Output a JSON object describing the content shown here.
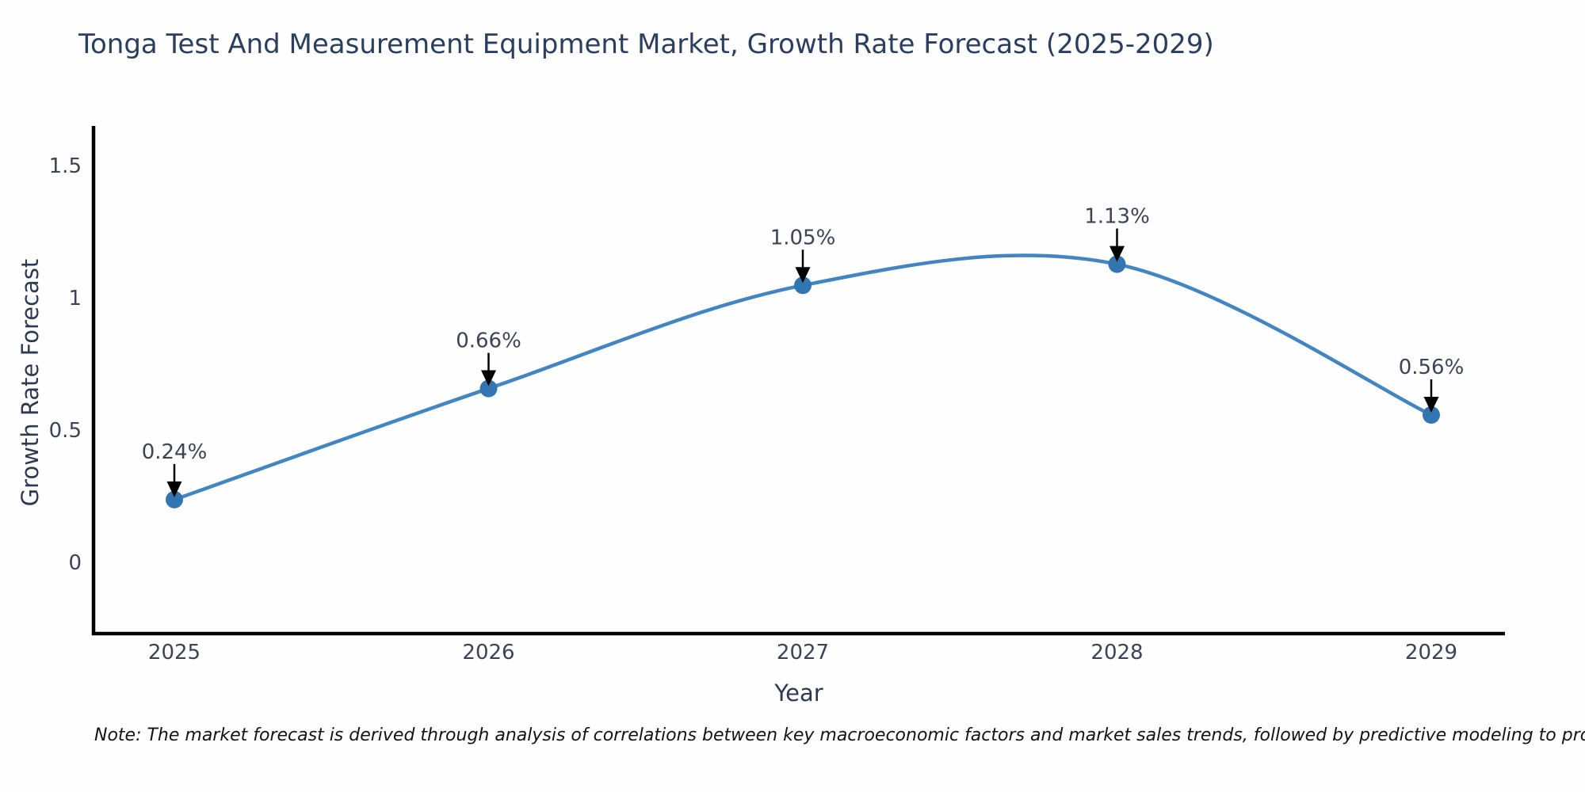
{
  "title": "Tonga Test And Measurement Equipment Market, Growth Rate Forecast (2025-2029)",
  "note": "Note: The market forecast is derived through analysis of correlations between key macroeconomic factors and market sales trends, followed by predictive modeling to project future sales",
  "chart_data": {
    "type": "line",
    "title": "Tonga Test And Measurement Equipment Market, Growth Rate Forecast (2025-2029)",
    "xlabel": "Year",
    "ylabel": "Growth Rate Forecast",
    "categories": [
      "2025",
      "2026",
      "2027",
      "2028",
      "2029"
    ],
    "series": [
      {
        "name": "Growth Rate Forecast",
        "values": [
          0.24,
          0.66,
          1.05,
          1.13,
          0.56
        ],
        "point_labels": [
          "0.24%",
          "0.66%",
          "1.05%",
          "1.13%",
          "0.56%"
        ]
      }
    ],
    "yticks": [
      0,
      0.5,
      1,
      1.5
    ],
    "ytick_labels": [
      "0",
      "0.5",
      "1",
      "1.5"
    ],
    "ylim": [
      -0.27,
      1.65
    ],
    "line_shape": "spline",
    "grid": false,
    "legend_position": "none",
    "colors": {
      "line": "#4285c1",
      "marker": "#3375b2",
      "axis_line": "#000000",
      "annotation_arrow": "#000000",
      "title_text": "#2a3f5f",
      "tick_text": "#3b4456",
      "note_text": "#141414",
      "background": "#fefefe"
    }
  }
}
